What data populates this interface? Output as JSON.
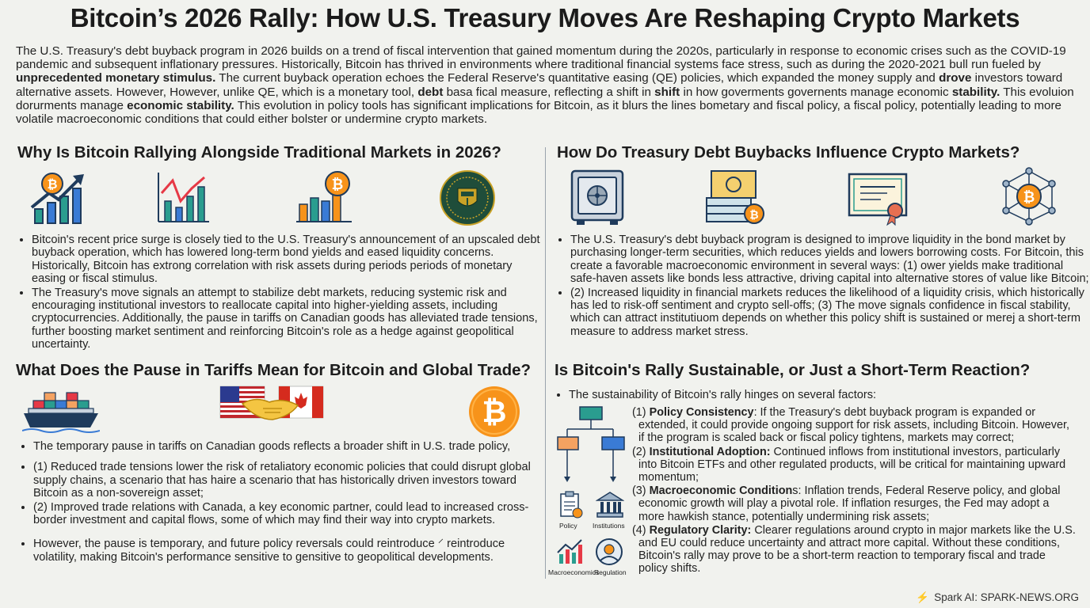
{
  "title": "Bitcoin’s 2026 Rally: How U.S. Treasury Moves Are Reshaping Crypto Markets",
  "intro": {
    "part1": "The U.S. Treasury's debt buyback program in 2026 builds on a trend of fiscal intervention that gained momentum during the 2020s, particularly in response to economic crises such as the COVID-19 pandemic and subsequent inflationary pressures. Historically, Bitcoin has thrived in environments where traditional financial systems face stress, such as during the 2020-2021 bull run fueled by ",
    "bold1": "unprecedented monetary stimulus.",
    "part2": " The current buyback operation echoes the Federal Reserve's quantitative easing (QE) policies, which expanded the money supply and ",
    "bold2": "drove",
    "part3": "  investors toward alternative assets. However, However, unlike QE, which is a monetary tool, ",
    "bold3": "debt",
    "part4": " basa fical measure, reflecting a shift in ",
    "bold4": "shift",
    "part5": " in how goverments governents manage economic ",
    "bold5": "stability.",
    "part6": " This evoluion dorurments manage ",
    "bold6": "economic stability.",
    "part7": "  This evolution in policy tools has significant implications for Bitcoin, as it blurs the lines bometary and fiscal policy, a fiscal policy, potentially leading to more volatile macroeconomic conditions that could either bolster or undermine crypto markets."
  },
  "sections": {
    "rally": {
      "heading": "Why Is Bitcoin Rallying Alongside Traditional Markets in 2026?",
      "bullets": [
        "Bitcoin's recent price surge is closely tied to the U.S. Treasury's announcement of an upscaled debt buyback operation, which has lowered long-term bond yields and eased liquidity concerns. Historically, Bitcoin has extrong correlation with risk assets during periods periods of monetary easing or fiscal stimulus.",
        "The Treasury's move signals an attempt to stabilize debt markets, reducing systemic risk and encouraging institutional investors to reallocate capital into higher-yielding assets, including cryptocurrencies. Additionally, the pause in tariffs on Canadian goods has alleviated trade tensions, further boosting market sentiment and reinforcing Bitcoin's role as a hedge against geopolitical uncertainty."
      ]
    },
    "buybacks": {
      "heading": "How Do Treasury Debt Buybacks Influence Crypto Markets?",
      "bullets": [
        "The U.S. Treasury's debt buyback program is designed to improve liquidity in the bond market by purchasing longer-term securities, which reduces yields and lowers borrowing costs. For Bitcoin, this create a favorable macroeconomic environment in several ways: (1) ower yields make traditional safe-haven assets like bonds less attractive,    driving capital into alternative stores of value like Bitcoin;",
        "(2) Increased liquidity in financial markets reduces the likelihood of a liquidity crisis, which historically has led to risk-off sentiment and crypto sell-offs; (3) The move signals confidence in fiscal stability, which can attract institutiuom depends on whether this policy shift is sustained or merej a short-term measure to address market stress."
      ]
    },
    "tariffs": {
      "heading": "What Does the Pause in Tariffs Mean for Bitcoin and Global Trade?",
      "bullets": [
        "The temporary pause in tariffs on Canadian goods reflects a broader shift in U.S. trade policy,",
        "(1) Reduced trade tensions lower the risk of retaliatory economic policies that could disrupt global supply chains, a scenario that has haire a scenario that has historically driven investors toward Bitcoin as a non-sovereign asset;",
        "(2) Improved trade relations with Canada, a key economic partner, could lead to increased cross-border investment and capital flows, some of which may find their way into crypto markets.",
        "However, the pause is temporary, and future policy reversals could reintroduce ⸍ reintroduce volatility, making Bitcoin's performance sensitive to gensitive to geopolitical developments."
      ]
    },
    "sustainable": {
      "heading": "Is Bitcoin's Rally Sustainable, or Just a Short-Term Reaction?",
      "lead": "The sustainability of Bitcoin's rally hinges on several factors:",
      "factors": [
        {
          "num": "(1)",
          "label": "Policy Consistency",
          "text": ": If the Treasury's debt buyback program is expanded or extended, it could provide ongoing support for risk assets, including Bitcoin. However, if the program is scaled back or fiscal policy tightens, markets may correct;"
        },
        {
          "num": "(2)",
          "label": "Institutional Adoption:",
          "text": " Continued inflows from institutional investors, particularly into Bitcoin ETFs and other regulated products, will be critical for maintaining upward momentum;"
        },
        {
          "num": "(3)",
          "label": "Macroeconomic Condition",
          "text": "s: Inflation trends, Federal Reserve policy, and global economic growth will play a pivotal role. If inflation resurges, the Fed may adopt a more hawkish stance, potentially undermining risk assets;"
        },
        {
          "num": "(4)",
          "label": "Regulatory Clarity:",
          "text": " Clearer regulations around crypto in major markets like the U.S. and EU could reduce uncertainty and attract more capital. Without these conditions, Bitcoin's rally may prove to be a short-term reaction to temporary fiscal and trade policy shifts."
        }
      ],
      "icon_labels": [
        "Policy",
        "Institutions",
        "Macroeconomics",
        "Regulation"
      ]
    }
  },
  "footer": "Spark AI: SPARK-NEWS.ORG",
  "colors": {
    "background": "#f1f2ee",
    "bitcoin": "#f7931a",
    "navy": "#1f3b5c",
    "teal": "#2a9d8f",
    "divider": "#9aa3ad"
  },
  "icons": [
    "bitcoin-growth-chart-icon",
    "bar-line-chart-icon",
    "bitcoin-bar-chart-icon",
    "treasury-seal-icon",
    "vault-icon",
    "cash-bitcoin-icon",
    "bond-certificate-icon",
    "bitcoin-network-icon",
    "cargo-ship-icon",
    "us-canada-handshake-icon",
    "bitcoin-coin-icon",
    "flowchart-icon",
    "policy-icon",
    "institutions-icon",
    "macroeconomics-icon",
    "regulation-icon",
    "lightning-bolt-icon"
  ]
}
